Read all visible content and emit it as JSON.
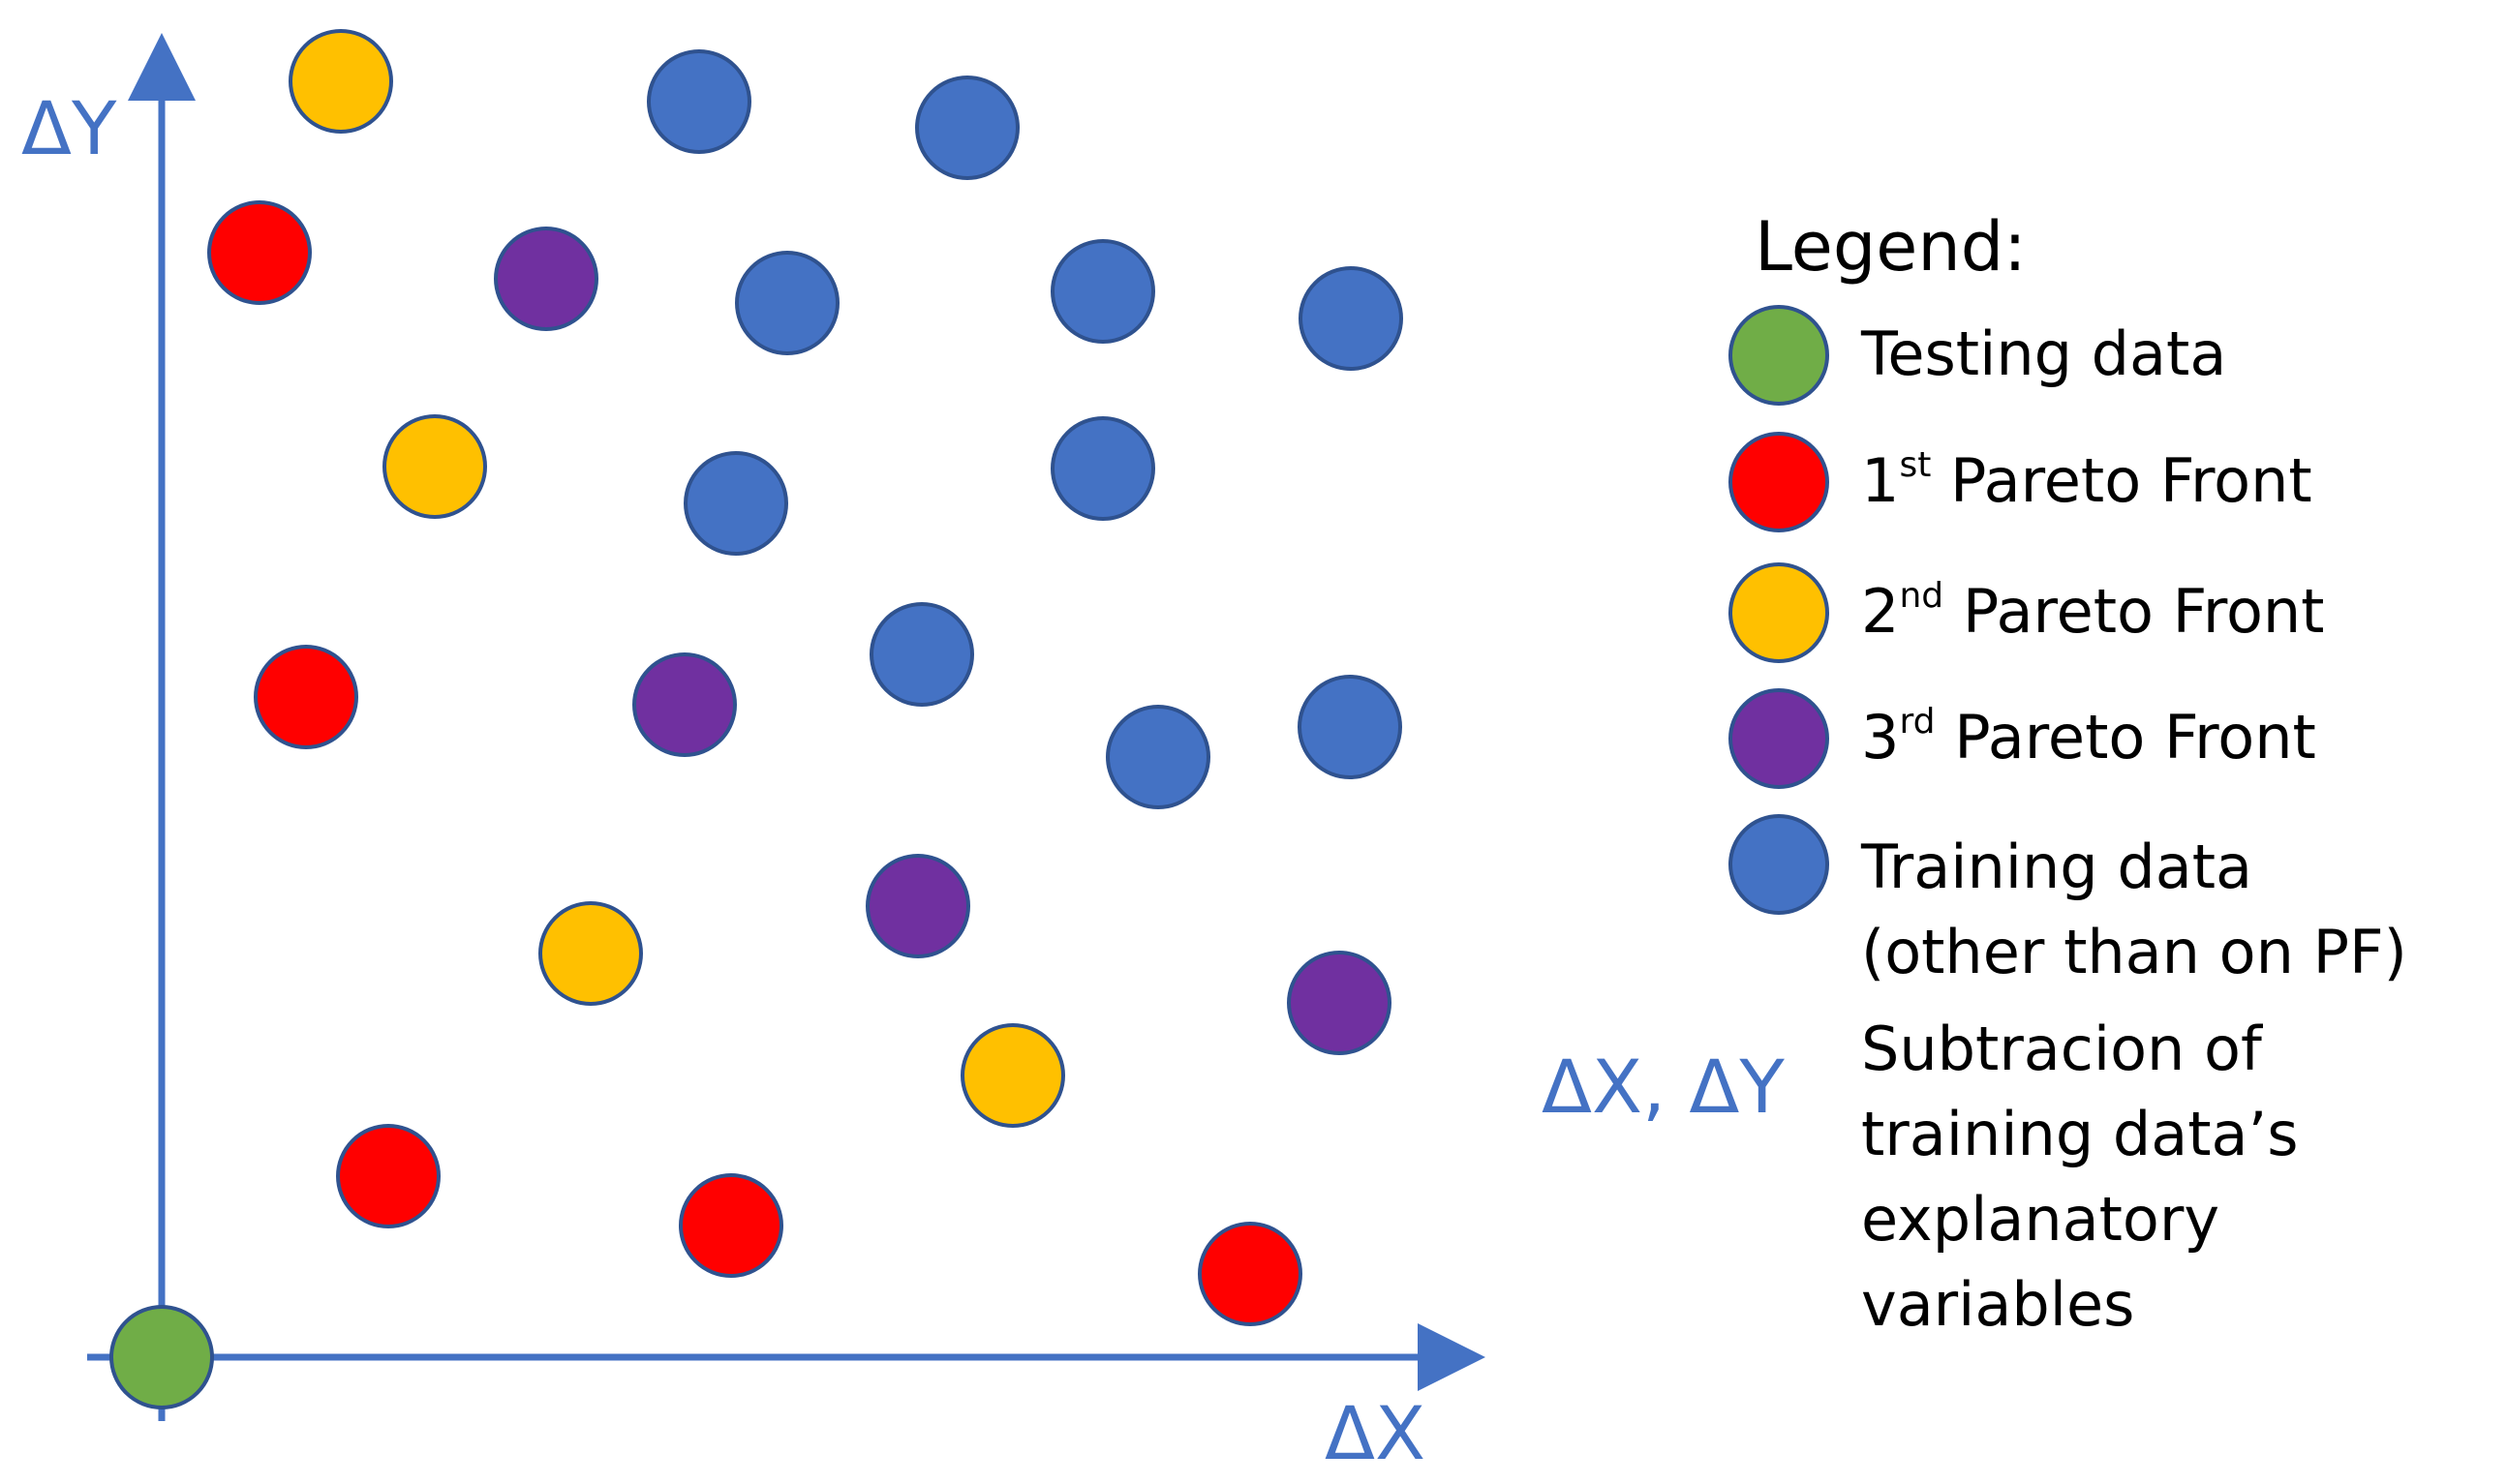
{
  "colors": {
    "axis": "#4472c4",
    "outline": "#2f528f",
    "testing": "#70ad47",
    "pf1": "#ff0000",
    "pf2": "#ffc000",
    "pf3": "#7030a0",
    "training": "#4472c4"
  },
  "axes": {
    "x_label": "ΔX",
    "y_label": "ΔY"
  },
  "legend": {
    "title": "Legend:",
    "items": [
      {
        "key": "testing",
        "label": "Testing data",
        "ordinal": "",
        "suffix": ""
      },
      {
        "key": "pf1",
        "label": "Pareto Front",
        "ordinal": "1",
        "suffix": "st"
      },
      {
        "key": "pf2",
        "label": "Pareto Front",
        "ordinal": "2",
        "suffix": "nd"
      },
      {
        "key": "pf3",
        "label": "Pareto Front",
        "ordinal": "3",
        "suffix": "rd"
      },
      {
        "key": "training",
        "label": "Training data (other than on PF)",
        "ordinal": "",
        "suffix": ""
      }
    ]
  },
  "note": {
    "symbol": "ΔX, ΔY",
    "text": "Subtracion of training data’s explanatory variables"
  }
}
